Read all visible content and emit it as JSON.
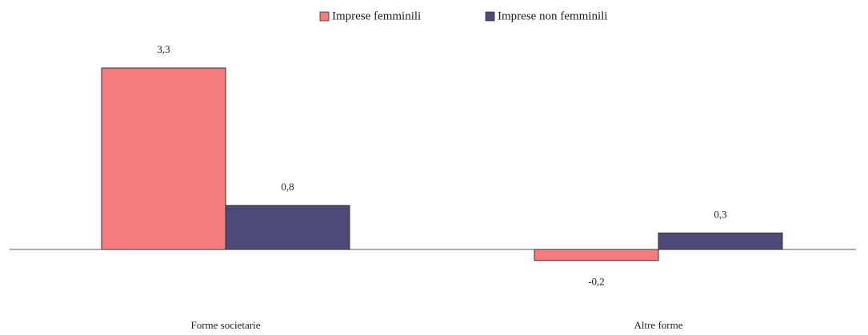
{
  "chart_data": {
    "type": "bar",
    "categories": [
      "Forme societarie",
      "Altre forme"
    ],
    "series": [
      {
        "name": "Imprese femminili",
        "color": "#f47c7f",
        "values": [
          3.3,
          -0.2
        ],
        "value_labels": [
          "3,3",
          "-0,2"
        ]
      },
      {
        "name": "Imprese non femminili",
        "color": "#4d4a78",
        "values": [
          0.8,
          0.3
        ],
        "value_labels": [
          "0,8",
          "0,3"
        ]
      }
    ],
    "legend": "top"
  }
}
